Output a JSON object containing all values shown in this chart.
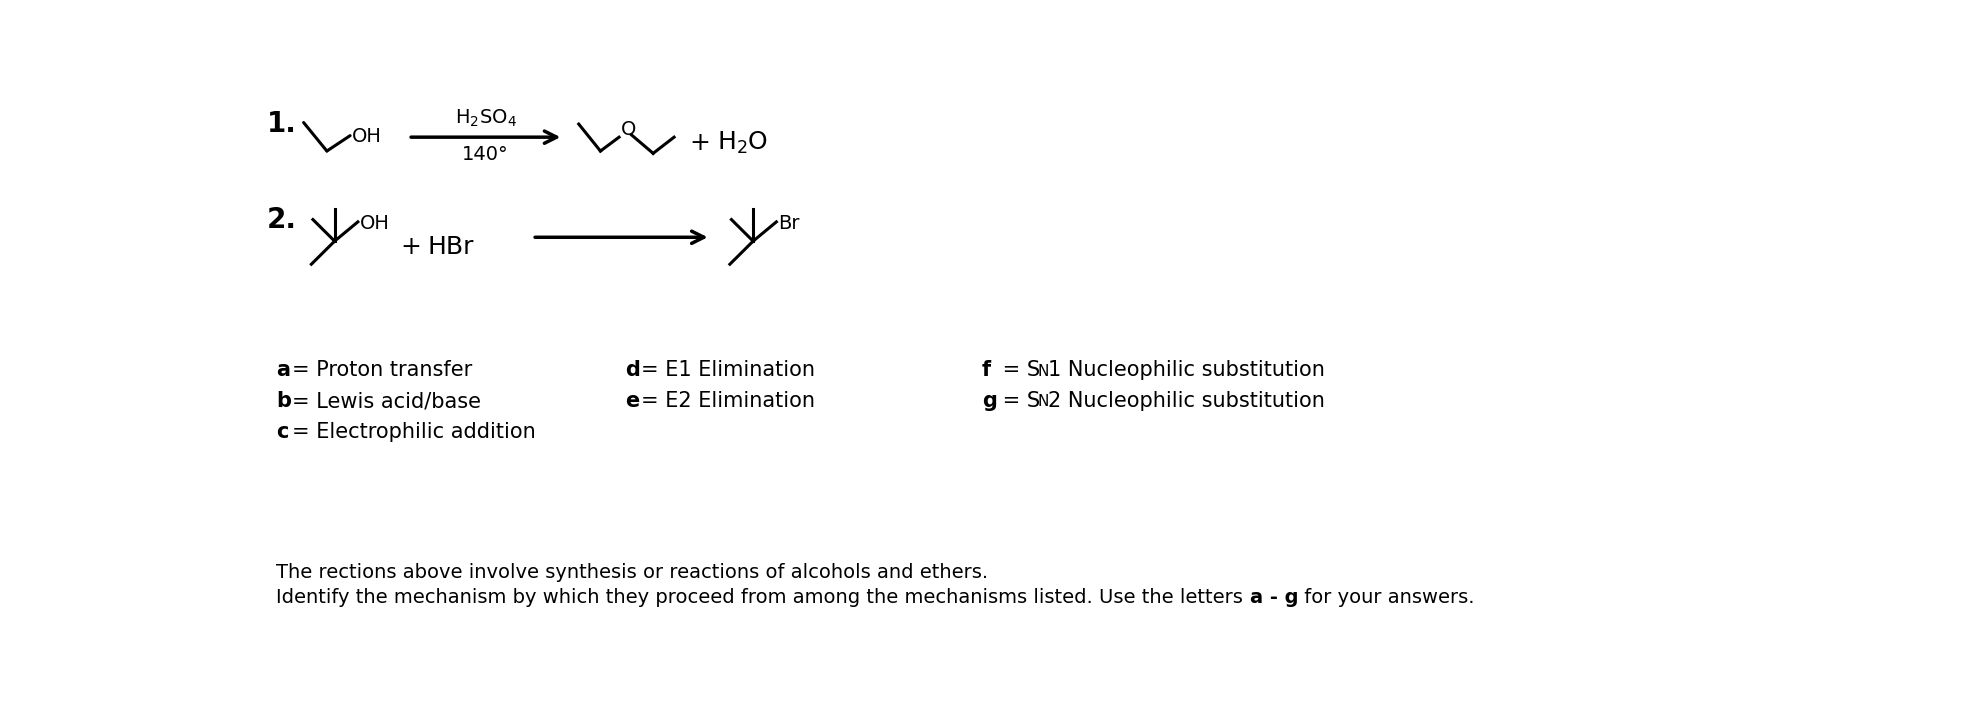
{
  "bg_color": "#ffffff",
  "fig_width": 19.64,
  "fig_height": 7.26,
  "dpi": 100,
  "text_color": "#000000",
  "font_family": "DejaVu Sans",
  "reaction1": {
    "number": "1.",
    "reagent_above": "H₂SO₄",
    "reagent_below": "140°",
    "plus": "+",
    "product2": "H₂O"
  },
  "reaction2": {
    "number": "2.",
    "reagent": "HBr",
    "plus": "+",
    "product_label": "Br"
  },
  "mechanisms": {
    "a": "Proton transfer",
    "b": "Lewis acid/base",
    "c": "Electrophilic addition",
    "d": "E1 Elimination",
    "e": "E2 Elimination",
    "f_rest": "1 Nucleophilic substitution",
    "g_rest": "2 Nucleophilic substitution"
  },
  "footer_line1": "The rections above involve synthesis or reactions of alcohols and ethers.",
  "footer_line2": "Identify the mechanism by which they proceed from among the mechanisms listed. Use the letters ",
  "footer_bold": "a - g",
  "footer_end": " for your answers."
}
